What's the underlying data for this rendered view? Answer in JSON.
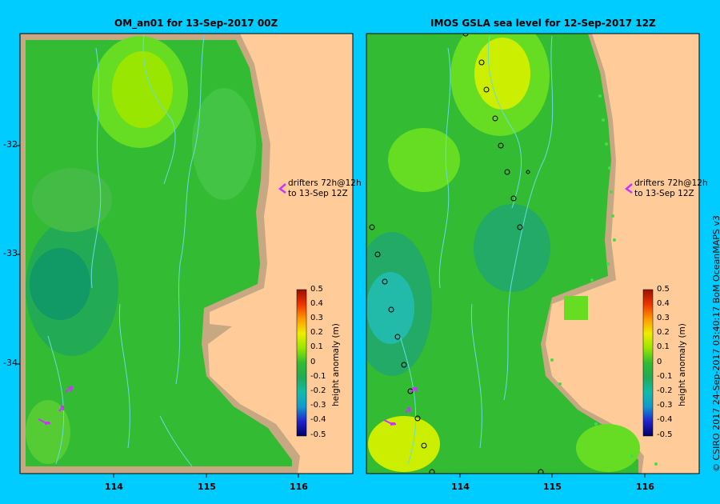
{
  "left_panel": {
    "title": "OM_an01  for 13-Sep-2017 00Z"
  },
  "right_panel": {
    "title": "IMOS GSLA sea level  for 12-Sep-2017 12Z"
  },
  "y_ticks": [
    "-32",
    "-33",
    "-34"
  ],
  "x_ticks": [
    "114",
    "115",
    "116"
  ],
  "drifters_label": {
    "line1": "drifters 72h@12h",
    "line2": "to 13-Sep 12Z"
  },
  "colorbar": {
    "label": "height anomaly (m)",
    "ticks": [
      "0.5",
      "0.4",
      "0.3",
      "0.2",
      "0.1",
      "0",
      "-0.1",
      "-0.2",
      "-0.3",
      "-0.4",
      "-0.5"
    ]
  },
  "credit": "© CSIRO 2017   24-Sep-2017 03:40:17 BoM OceanMAPS v3",
  "colors": {
    "background": "#00ccff",
    "land": "#ffcc99",
    "shelf": "#c8a882",
    "drifter": "#cc33ff"
  }
}
